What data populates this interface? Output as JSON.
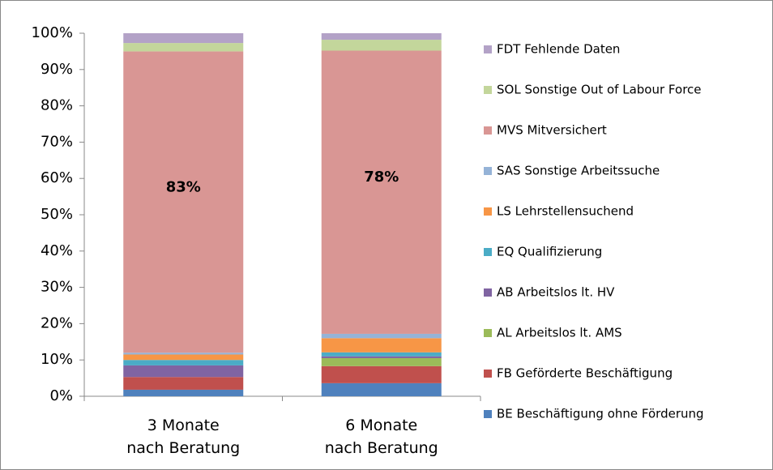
{
  "chart_data": {
    "type": "stacked_bar",
    "categories": [
      "3 Monate\nnach Beratung",
      "6 Monate\nnach Beratung"
    ],
    "ylim": [
      0,
      100
    ],
    "yticks": [
      {
        "value": 0,
        "label": "0%"
      },
      {
        "value": 10,
        "label": "10%"
      },
      {
        "value": 20,
        "label": "20%"
      },
      {
        "value": 30,
        "label": "30%"
      },
      {
        "value": 40,
        "label": "40%"
      },
      {
        "value": 50,
        "label": "50%"
      },
      {
        "value": 60,
        "label": "60%"
      },
      {
        "value": 70,
        "label": "70%"
      },
      {
        "value": 80,
        "label": "80%"
      },
      {
        "value": 90,
        "label": "90%"
      },
      {
        "value": 100,
        "label": "100%"
      }
    ],
    "grid": false,
    "legend": "right",
    "series": [
      {
        "name": "BE Beschäftigung ohne Förderung",
        "color": "#4f81bd",
        "values": [
          1.8,
          3.6
        ]
      },
      {
        "name": "FB Geförderte Beschäftigung",
        "color": "#c0504d",
        "values": [
          3.5,
          4.7
        ]
      },
      {
        "name": "AL Arbeitslos lt. AMS",
        "color": "#9bbb59",
        "values": [
          0,
          2.2
        ]
      },
      {
        "name": "AB Arbeitslos lt. HV",
        "color": "#8064a2",
        "values": [
          3.2,
          0.5
        ]
      },
      {
        "name": "EQ Qualifizierung",
        "color": "#4bacc6",
        "values": [
          1.5,
          1.1
        ]
      },
      {
        "name": "LS Lehrstellensuchend",
        "color": "#f79646",
        "values": [
          1.5,
          3.9
        ]
      },
      {
        "name": "SAS Sonstige Arbeitssuche",
        "color": "#95b3d7",
        "values": [
          0.5,
          1.2
        ]
      },
      {
        "name": "MVS Mitversichert",
        "color": "#d99694",
        "values": [
          83,
          78
        ],
        "value_labels": [
          "83%",
          "78%"
        ]
      },
      {
        "name": "SOL Sonstige Out of Labour Force",
        "color": "#c3d69b",
        "values": [
          2.3,
          3
        ]
      },
      {
        "name": "FDT Fehlende Daten",
        "color": "#b3a2c7",
        "values": [
          2.7,
          1.8
        ]
      }
    ]
  }
}
